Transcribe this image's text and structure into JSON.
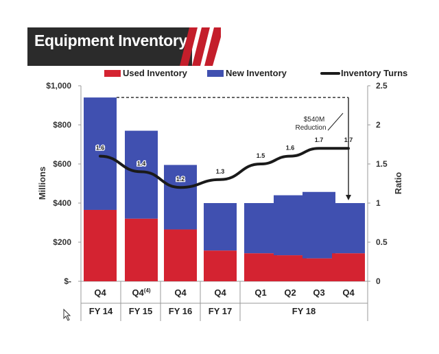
{
  "title": "Equipment Inventory",
  "colors": {
    "used": "#d42331",
    "new": "#4050b0",
    "line": "#1a1a1a",
    "title_bg": "#2b2b2b",
    "accent": "#c41e2b"
  },
  "chart_data": {
    "type": "bar",
    "stacked": true,
    "categories": [
      "Q4",
      "Q4",
      "Q4",
      "Q4",
      "Q1",
      "Q2",
      "Q3",
      "Q4"
    ],
    "category_superscripts": [
      "",
      "(4)",
      "",
      "",
      "",
      "",
      "",
      ""
    ],
    "groups": [
      {
        "label": "FY 14",
        "span": 1
      },
      {
        "label": "FY 15",
        "span": 1
      },
      {
        "label": "FY 16",
        "span": 1
      },
      {
        "label": "FY 17",
        "span": 1
      },
      {
        "label": "FY 18",
        "span": 4
      }
    ],
    "series": [
      {
        "name": "Used Inventory",
        "values": [
          365,
          320,
          265,
          157,
          143,
          133,
          117,
          143
        ]
      },
      {
        "name": "New Inventory",
        "values": [
          575,
          450,
          330,
          243,
          257,
          307,
          340,
          257
        ]
      }
    ],
    "line_series": {
      "name": "Inventory Turns",
      "axis": "right",
      "values": [
        1.6,
        1.4,
        1.2,
        1.3,
        1.5,
        1.6,
        1.7,
        1.7
      ],
      "labels": [
        "1.6",
        "1.4",
        "1.2",
        "1.3",
        "1.5",
        "1.6",
        "1.7",
        "1.7"
      ]
    },
    "y_left": {
      "label": "Millions",
      "range": [
        0,
        1000
      ],
      "ticks": [
        0,
        200,
        400,
        600,
        800,
        1000
      ],
      "tick_labels": [
        "$-",
        "$200",
        "$400",
        "$600",
        "$800",
        "$1,000"
      ]
    },
    "y_right": {
      "label": "Ratio",
      "range": [
        0,
        2.5
      ],
      "ticks": [
        0,
        0.5,
        1,
        1.5,
        2,
        2.5
      ],
      "tick_labels": [
        "0",
        "0.5",
        "1",
        "1.5",
        "2",
        "2.5"
      ]
    },
    "annotation": {
      "line1": "$540M",
      "line2": "Reduction"
    },
    "legend_position": "top",
    "grid": false
  }
}
